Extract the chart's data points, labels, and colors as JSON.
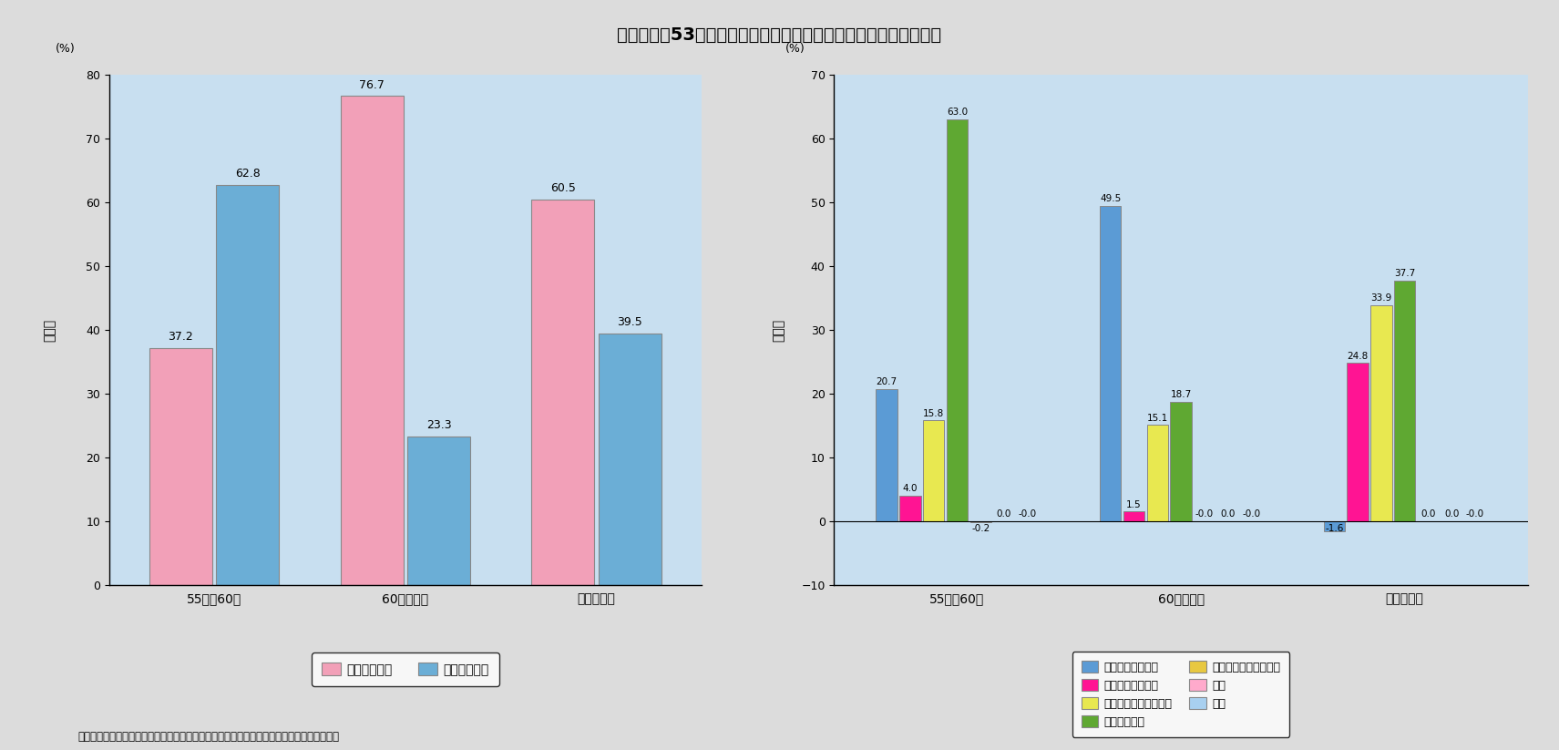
{
  "title": "第３－２－53図　国内電気通信業の国内生産額の成長の要因分解",
  "footnote": "郵政省資料、産業連関表（総務庁）、産業連関表（延長表）　（通商産業省）等により作成",
  "chart1": {
    "categories": [
      "55年～60年",
      "60年～２年",
      "２年～６年"
    ],
    "series": [
      {
        "name": "中間需要要因",
        "color": "#F2A0B8",
        "values": [
          37.2,
          76.7,
          60.5
        ]
      },
      {
        "name": "最終需要要因",
        "color": "#6BAED6",
        "values": [
          62.8,
          23.3,
          39.5
        ]
      }
    ],
    "ylabel": "寄与率",
    "yunits": "(%)",
    "ylim": [
      0,
      80
    ],
    "yticks": [
      0,
      10,
      20,
      30,
      40,
      50,
      60,
      70,
      80
    ]
  },
  "chart2": {
    "categories": [
      "55年～60年",
      "60年～２年",
      "２年～６年"
    ],
    "series": [
      {
        "name": "中間需要規模要因",
        "color": "#5B9BD5",
        "values": [
          20.7,
          49.5,
          -1.6
        ]
      },
      {
        "name": "産業構造変化要因",
        "color": "#FF1493",
        "values": [
          4.0,
          1.5,
          24.8
        ]
      },
      {
        "name": "中間投入係数変化要因",
        "color": "#E8E850",
        "values": [
          15.8,
          15.1,
          33.9
        ]
      },
      {
        "name": "民間最終消費",
        "color": "#5FA832",
        "values": [
          63.0,
          18.7,
          37.7
        ]
      },
      {
        "name": "固定資本形成（民間）",
        "color": "#E8C840",
        "values": [
          -0.2,
          -0.0,
          0.0
        ]
      },
      {
        "name": "輸出",
        "color": "#FFAACC",
        "values": [
          0.0,
          0.0,
          0.0
        ]
      },
      {
        "name": "輸入",
        "color": "#A8D0F0",
        "values": [
          -0.0,
          -0.0,
          -0.0
        ]
      }
    ],
    "ylabel": "寄与率",
    "yunits": "(%)",
    "ylim": [
      -10,
      70
    ],
    "yticks": [
      -10,
      0,
      10,
      20,
      30,
      40,
      50,
      60,
      70
    ]
  },
  "bg_color": "#C8DFF0",
  "fig_bg": "#DCDCDC"
}
